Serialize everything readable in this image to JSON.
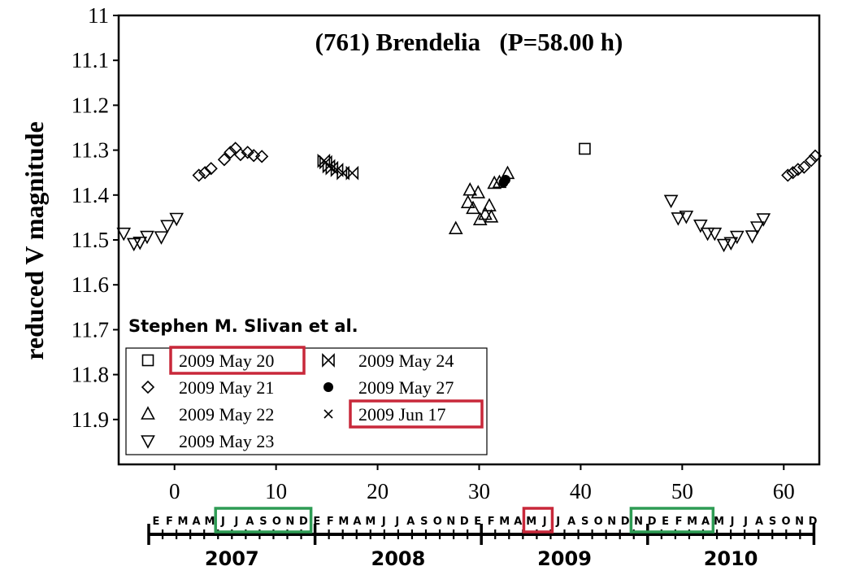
{
  "chart_data": {
    "type": "scatter",
    "title": "(761) Brendelia   (P=58.00 h)",
    "credit": "Stephen M. Slivan et al.",
    "xlabel": "",
    "ylabel": "reduced V magnitude",
    "xlim": [
      -5.5,
      63.5
    ],
    "ylim": [
      11.0,
      12.0
    ],
    "y_inverted": true,
    "grid": false,
    "xticks": [
      0,
      10,
      20,
      30,
      40,
      50,
      60
    ],
    "yticks": [
      11,
      11.1,
      11.2,
      11.3,
      11.4,
      11.5,
      11.6,
      11.7,
      11.8,
      11.9
    ],
    "ytick_labels": [
      "11",
      "11.1",
      "11.2",
      "11.3",
      "11.4",
      "11.5",
      "11.6",
      "11.7",
      "11.8",
      "11.9"
    ],
    "legend_position": "bottom-left",
    "legend_columns": [
      [
        "2009 May 20",
        "2009 May 21",
        "2009 May 22",
        "2009 May 23"
      ],
      [
        "2009 May 24",
        "2009 May 27",
        "2009 Jun 17"
      ]
    ],
    "highlighted_legend_entries": [
      "2009 May 20",
      "2009 Jun 17"
    ],
    "series": [
      {
        "name": "2009 May 20",
        "marker": "square",
        "x": [
          40.4
        ],
        "y": [
          11.297
        ]
      },
      {
        "name": "2009 May 21",
        "marker": "diamond",
        "x": [
          2.4,
          3.0,
          3.6,
          4.9,
          5.5,
          6.0,
          6.5,
          7.2,
          7.8,
          8.6
        ],
        "y": [
          11.356,
          11.35,
          11.341,
          11.321,
          11.305,
          11.296,
          11.31,
          11.305,
          11.312,
          11.314
        ]
      },
      {
        "name": "2009 May 22",
        "marker": "triangle-up",
        "x": [
          27.7,
          28.9,
          29.1,
          29.4,
          29.9,
          30.1,
          30.6,
          31.0,
          31.2,
          31.5,
          32.0,
          32.8
        ],
        "y": [
          11.475,
          11.417,
          11.389,
          11.43,
          11.395,
          11.455,
          11.443,
          11.424,
          11.449,
          11.374,
          11.372,
          11.352
        ]
      },
      {
        "name": "2009 May 23",
        "marker": "triangle-down",
        "x": [
          -5.0,
          -4.0,
          -3.4,
          -2.7,
          -1.3,
          -0.7,
          0.2,
          48.9,
          49.6,
          50.4,
          51.8,
          52.5,
          53.2,
          54.1,
          54.8,
          55.4,
          56.9,
          57.4,
          58.0
        ],
        "y": [
          11.485,
          11.508,
          11.505,
          11.492,
          11.493,
          11.468,
          11.452,
          11.412,
          11.451,
          11.447,
          11.467,
          11.485,
          11.485,
          11.51,
          11.506,
          11.492,
          11.491,
          11.471,
          11.453
        ]
      },
      {
        "name": "2009 May 24",
        "marker": "bowtie",
        "x": [
          14.7,
          14.9,
          15.2,
          15.5,
          16.0,
          16.6,
          17.5
        ],
        "y": [
          11.324,
          11.327,
          11.336,
          11.34,
          11.344,
          11.351,
          11.351
        ]
      },
      {
        "name": "2009 May 27",
        "marker": "filled-circle",
        "x": [
          32.4,
          32.6
        ],
        "y": [
          11.372,
          11.366
        ]
      },
      {
        "name": "2009 Jun 17",
        "marker": "cross",
        "x": [
          60.4,
          60.9,
          61.4,
          62.0,
          62.7,
          63.1
        ],
        "y": [
          11.356,
          11.35,
          11.343,
          11.338,
          11.323,
          11.313
        ]
      }
    ],
    "timeline": {
      "months": [
        "E",
        "F",
        "M",
        "A",
        "M",
        "J",
        "J",
        "A",
        "S",
        "O",
        "N",
        "D",
        "E",
        "F",
        "M",
        "A",
        "M",
        "J",
        "J",
        "A",
        "S",
        "O",
        "N",
        "D",
        "E",
        "F",
        "M",
        "A",
        "M",
        "J",
        "J",
        "A",
        "S",
        "O",
        "N",
        "D",
        "N",
        "D",
        "E",
        "F",
        "M",
        "A",
        "M",
        "J",
        "J",
        "A",
        "S",
        "O",
        "N",
        "D"
      ],
      "years": [
        "2007",
        "2008",
        "2009",
        "2010"
      ],
      "highlights": [
        {
          "color": "#2e9c54",
          "from": 5,
          "to": 11
        },
        {
          "color": "#c8283a",
          "from": 28,
          "to": 29
        },
        {
          "color": "#2e9c54",
          "from": 36,
          "to": 41
        }
      ]
    }
  }
}
